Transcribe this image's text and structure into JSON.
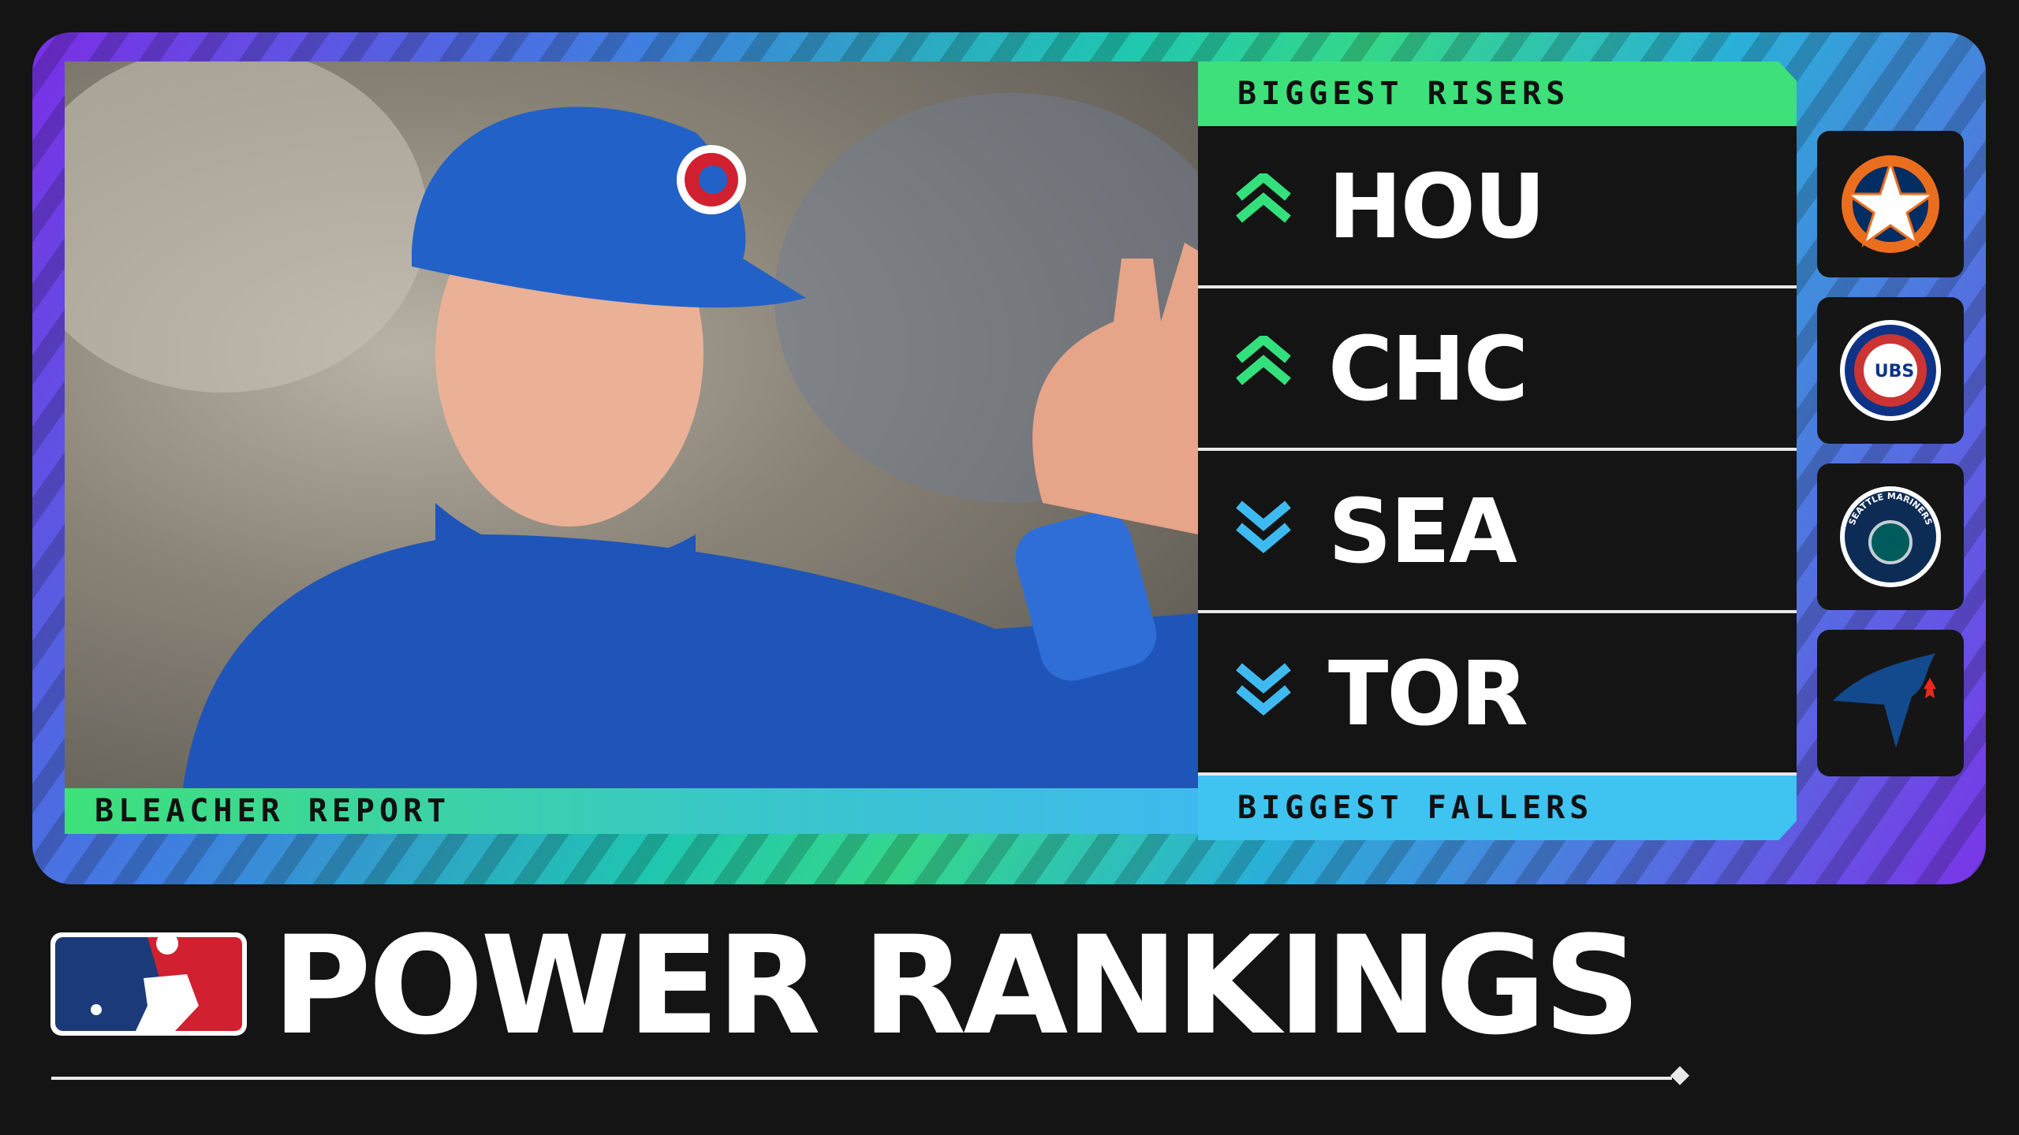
{
  "header": {
    "risers_label": "BIGGEST RISERS",
    "fallers_label": "BIGGEST FALLERS"
  },
  "credit": "BLEACHER REPORT",
  "teams": [
    {
      "abbr": "HOU",
      "direction": "up"
    },
    {
      "abbr": "CHC",
      "direction": "up",
      "logo_text": "UBS"
    },
    {
      "abbr": "SEA",
      "direction": "down",
      "logo_text": "SEATTLE MARINERS"
    },
    {
      "abbr": "TOR",
      "direction": "down"
    }
  ],
  "title": "POWER RANKINGS"
}
